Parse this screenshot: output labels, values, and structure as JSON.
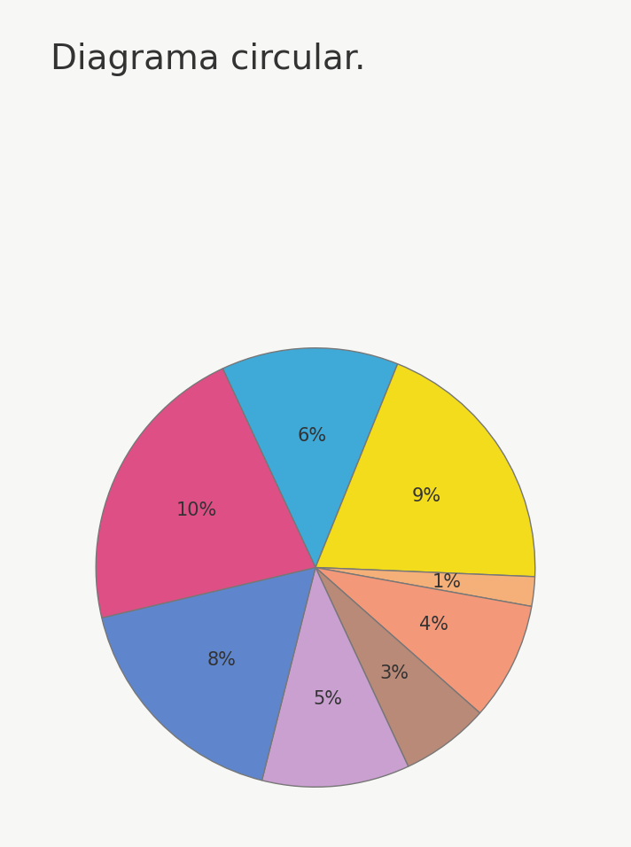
{
  "chart_data": {
    "type": "pie",
    "title": "Diagrama circular.",
    "categories": [
      null,
      null,
      null,
      null,
      null,
      null,
      null,
      null
    ],
    "values": [
      6,
      9,
      1,
      4,
      3,
      5,
      8,
      10
    ],
    "value_labels": [
      "6%",
      "9%",
      "1%",
      "4%",
      "3%",
      "5%",
      "8%",
      "10%"
    ],
    "colors": [
      "#3fa9d8",
      "#f2dc1c",
      "#f5b07a",
      "#f4987a",
      "#b98a78",
      "#c9a0d0",
      "#5f86cc",
      "#de4f86"
    ],
    "data_labels": true
  }
}
